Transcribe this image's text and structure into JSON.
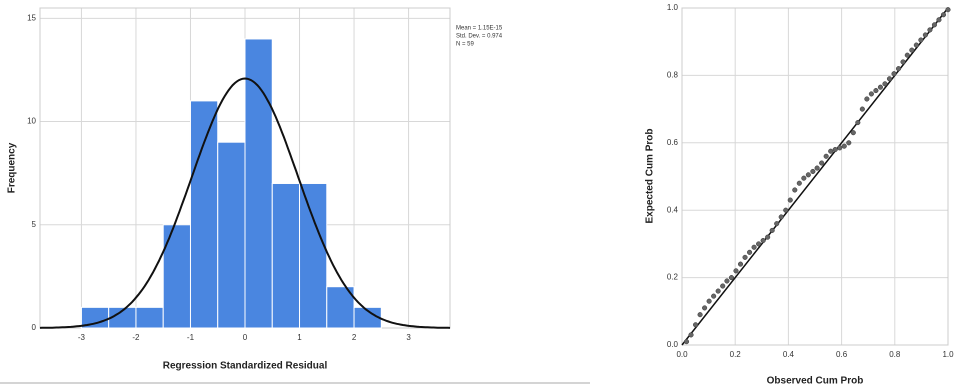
{
  "chart_data": [
    {
      "type": "histogram",
      "x_label": "Regression Standardized Residual",
      "y_label": "Frequency",
      "bins": [
        -3,
        -2.5,
        -2,
        -1.5,
        -1,
        -0.5,
        0,
        0.5,
        1,
        1.5,
        2,
        2.5
      ],
      "values": [
        1,
        1,
        1,
        5,
        11,
        9,
        14,
        7,
        7,
        2,
        1
      ],
      "color": "#4a86e0",
      "curve_color": "#111111",
      "xlim": [
        -3.76,
        3.76
      ],
      "ylim": [
        0,
        15.5
      ],
      "xticks": [
        -3,
        -2,
        -1,
        0,
        1,
        2,
        3
      ],
      "yticks": [
        0,
        5,
        10,
        15
      ],
      "grid": true,
      "stats": [
        {
          "label": "Mean = 1.15E-15",
          "value": 1.15e-15
        },
        {
          "label": "Std. Dev. = 0.974",
          "value": 0.974
        },
        {
          "label": "N = 59",
          "value": 59
        }
      ]
    },
    {
      "type": "scatter",
      "x_label": "Observed Cum Prob",
      "y_label": "Expected Cum Prob",
      "x": [
        0.017,
        0.034,
        0.051,
        0.068,
        0.085,
        0.102,
        0.119,
        0.136,
        0.153,
        0.169,
        0.186,
        0.203,
        0.22,
        0.237,
        0.254,
        0.271,
        0.288,
        0.305,
        0.322,
        0.339,
        0.356,
        0.373,
        0.39,
        0.407,
        0.424,
        0.441,
        0.458,
        0.475,
        0.492,
        0.508,
        0.525,
        0.542,
        0.559,
        0.576,
        0.593,
        0.61,
        0.627,
        0.644,
        0.661,
        0.678,
        0.695,
        0.712,
        0.729,
        0.746,
        0.763,
        0.78,
        0.797,
        0.814,
        0.831,
        0.847,
        0.864,
        0.881,
        0.898,
        0.915,
        0.932,
        0.949,
        0.966,
        0.983,
        1.0
      ],
      "values": [
        0.01,
        0.03,
        0.06,
        0.09,
        0.11,
        0.13,
        0.145,
        0.16,
        0.175,
        0.19,
        0.2,
        0.22,
        0.24,
        0.26,
        0.275,
        0.29,
        0.3,
        0.31,
        0.32,
        0.34,
        0.36,
        0.38,
        0.4,
        0.43,
        0.46,
        0.48,
        0.495,
        0.505,
        0.515,
        0.525,
        0.54,
        0.56,
        0.575,
        0.58,
        0.585,
        0.59,
        0.6,
        0.63,
        0.66,
        0.7,
        0.73,
        0.745,
        0.755,
        0.765,
        0.775,
        0.79,
        0.805,
        0.82,
        0.84,
        0.86,
        0.875,
        0.89,
        0.905,
        0.92,
        0.935,
        0.95,
        0.965,
        0.98,
        0.995
      ],
      "color": "#666666",
      "line_color": "#111111",
      "xlim": [
        0,
        1
      ],
      "ylim": [
        0,
        1
      ],
      "xticks": [
        {
          "value": 0,
          "label": "0.0"
        },
        0.2,
        0.4,
        0.6,
        0.8,
        {
          "value": 1,
          "label": "1.0"
        }
      ],
      "yticks": [
        {
          "value": 0,
          "label": "0.0"
        },
        0.2,
        0.4,
        0.6,
        0.8,
        {
          "value": 1,
          "label": "1.0"
        }
      ],
      "grid": true
    }
  ]
}
